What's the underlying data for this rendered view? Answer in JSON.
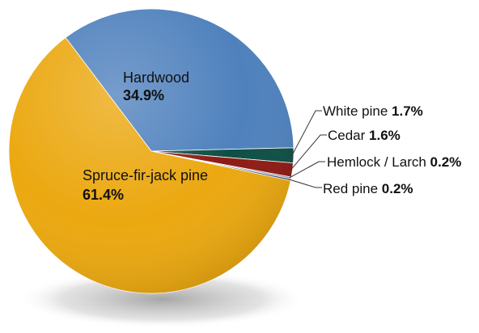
{
  "chart_data": {
    "type": "pie",
    "slices": [
      {
        "label": "Hardwood",
        "value_text": "34.9%",
        "value": 34.9,
        "color": "#4f81bd"
      },
      {
        "label": "White pine",
        "value_text": "1.7%",
        "value": 1.7,
        "color": "#0d4f45"
      },
      {
        "label": "Cedar",
        "value_text": "1.6%",
        "value": 1.6,
        "color": "#8e1a14"
      },
      {
        "label": "Hemlock / Larch",
        "value_text": "0.2%",
        "value": 0.2,
        "color": "#9a9a9a"
      },
      {
        "label": "Red pine",
        "value_text": "0.2%",
        "value": 0.2,
        "color": "#2a3a6a"
      },
      {
        "label": "Spruce-fir-jack pine",
        "value_text": "61.4%",
        "value": 61.4,
        "color": "#eba810"
      }
    ],
    "legend": "none",
    "labels": "on-chart with leader lines for small slices"
  }
}
